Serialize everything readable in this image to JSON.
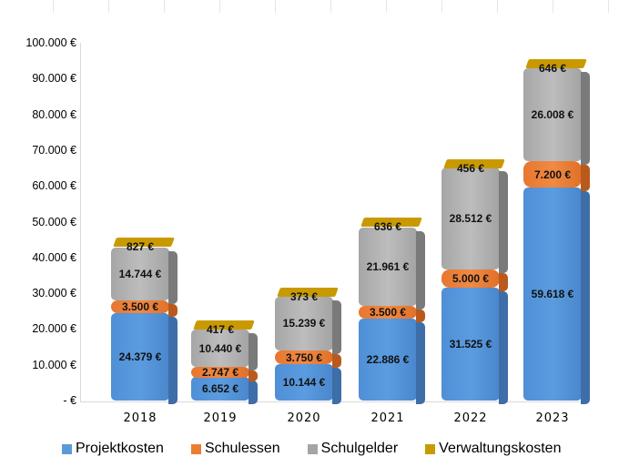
{
  "chart_data": {
    "type": "bar",
    "stacked": true,
    "style": "3d-stacked-column",
    "title": "",
    "xlabel": "",
    "ylabel": "",
    "ylim": [
      0,
      100000
    ],
    "grid": false,
    "legend_position": "bottom",
    "categories": [
      "2018",
      "2019",
      "2020",
      "2021",
      "2022",
      "2023"
    ],
    "y_tick_labels": [
      "-  €",
      "10.000 €",
      "20.000 €",
      "30.000 €",
      "40.000 €",
      "50.000 €",
      "60.000 €",
      "70.000 €",
      "80.000 €",
      "90.000 €",
      "100.000 €"
    ],
    "y_ticks": [
      0,
      10000,
      20000,
      30000,
      40000,
      50000,
      60000,
      70000,
      80000,
      90000,
      100000
    ],
    "series": [
      {
        "name": "Projektkosten",
        "color": "#5b9bd5",
        "values": [
          24379,
          6652,
          10144,
          22886,
          31525,
          59618
        ],
        "labels": [
          "24.379 €",
          "6.652 €",
          "10.144 €",
          "22.886 €",
          "31.525 €",
          "59.618 €"
        ]
      },
      {
        "name": "Schulessen",
        "color": "#ed7d31",
        "values": [
          3500,
          2747,
          3750,
          3500,
          5000,
          7200
        ],
        "labels": [
          "3.500 €",
          "2.747 €",
          "3.750 €",
          "3.500 €",
          "5.000 €",
          "7.200 €"
        ]
      },
      {
        "name": "Schulgelder",
        "color": "#a5a5a5",
        "values": [
          14744,
          10440,
          15239,
          21961,
          28512,
          26008
        ],
        "labels": [
          "14.744 €",
          "10.440 €",
          "15.239 €",
          "21.961 €",
          "28.512 €",
          "26.008 €"
        ]
      },
      {
        "name": "Verwaltungskosten",
        "color": "#c99a00",
        "values": [
          827,
          417,
          373,
          636,
          456,
          646
        ],
        "labels": [
          "827 €",
          "417 €",
          "373 €",
          "636 €",
          "456 €",
          "646 €"
        ]
      }
    ]
  },
  "legend": {
    "items": [
      {
        "label": "Projektkosten",
        "color": "#5b9bd5"
      },
      {
        "label": "Schulessen",
        "color": "#ed7d31"
      },
      {
        "label": "Schulgelder",
        "color": "#a5a5a5"
      },
      {
        "label": "Verwaltungskosten",
        "color": "#c99a00"
      }
    ]
  }
}
